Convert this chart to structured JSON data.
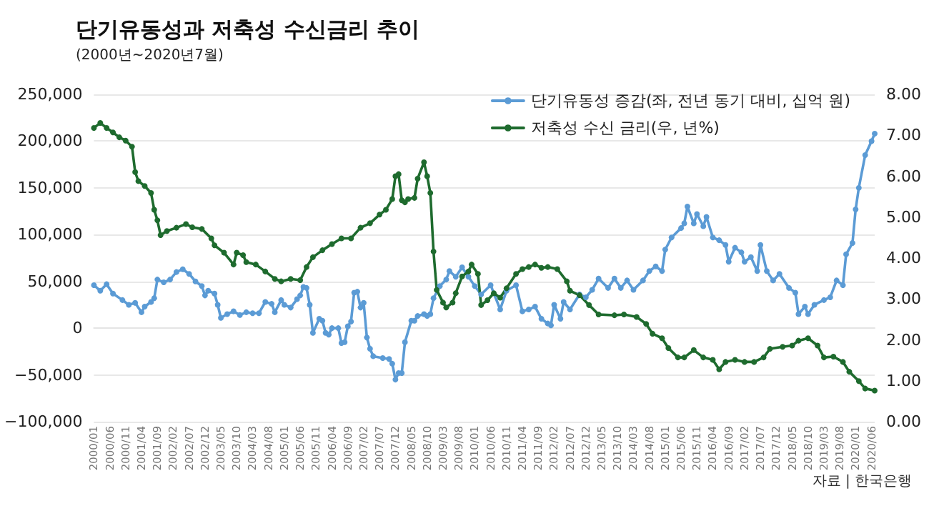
{
  "chart_data": {
    "type": "line",
    "title": "단기유동성과 저축성 수신금리 추이",
    "subtitle": "(2000년~2020년7월)",
    "annotations": [
      "자료 | 한국은행"
    ],
    "xlim": [
      "2000-01",
      "2020-07"
    ],
    "xticks": [
      {
        "value": "2000-01",
        "label": "2000/01"
      },
      {
        "value": "2000-06",
        "label": "2000/06"
      },
      {
        "value": "2000-11",
        "label": "2000/11"
      },
      {
        "value": "2001-04",
        "label": "2001/04"
      },
      {
        "value": "2001-09",
        "label": "2001/09"
      },
      {
        "value": "2002-02",
        "label": "2002/02"
      },
      {
        "value": "2002-07",
        "label": "2002/07"
      },
      {
        "value": "2002-12",
        "label": "2002/12"
      },
      {
        "value": "2003-05",
        "label": "2003/05"
      },
      {
        "value": "2003-10",
        "label": "2003/10"
      },
      {
        "value": "2004-03",
        "label": "2004/03"
      },
      {
        "value": "2004-08",
        "label": "2004/08"
      },
      {
        "value": "2005-01",
        "label": "2005/01"
      },
      {
        "value": "2005-06",
        "label": "2005/06"
      },
      {
        "value": "2005-11",
        "label": "2005/11"
      },
      {
        "value": "2006-04",
        "label": "2006/04"
      },
      {
        "value": "2006-09",
        "label": "2006/09"
      },
      {
        "value": "2007-02",
        "label": "2007/02"
      },
      {
        "value": "2007-07",
        "label": "2007/07"
      },
      {
        "value": "2007-12",
        "label": "2007/12"
      },
      {
        "value": "2008-05",
        "label": "2008/05"
      },
      {
        "value": "2008-10",
        "label": "2008/10"
      },
      {
        "value": "2009-03",
        "label": "2009/03"
      },
      {
        "value": "2009-08",
        "label": "2009/08"
      },
      {
        "value": "2010-01",
        "label": "2010/01"
      },
      {
        "value": "2010-06",
        "label": "2010/06"
      },
      {
        "value": "2010-11",
        "label": "2010/11"
      },
      {
        "value": "2011-04",
        "label": "2011/04"
      },
      {
        "value": "2011-09",
        "label": "2011/09"
      },
      {
        "value": "2012-02",
        "label": "2012/02"
      },
      {
        "value": "2012-07",
        "label": "2012/07"
      },
      {
        "value": "2012-12",
        "label": "2012/12"
      },
      {
        "value": "2013-05",
        "label": "2013/05"
      },
      {
        "value": "2013-10",
        "label": "2013/10"
      },
      {
        "value": "2014-03",
        "label": "2014/03"
      },
      {
        "value": "2014-08",
        "label": "2014/08"
      },
      {
        "value": "2015-01",
        "label": "2015/01"
      },
      {
        "value": "2015-06",
        "label": "2015/06"
      },
      {
        "value": "2015-11",
        "label": "2015/11"
      },
      {
        "value": "2016-04",
        "label": "2016/04"
      },
      {
        "value": "2016-09",
        "label": "2016/09"
      },
      {
        "value": "2017-02",
        "label": "2017/02"
      },
      {
        "value": "2017-07",
        "label": "2017/07"
      },
      {
        "value": "2017-12",
        "label": "2017/12"
      },
      {
        "value": "2018-05",
        "label": "2018/05"
      },
      {
        "value": "2018-10",
        "label": "2018/10"
      },
      {
        "value": "2019-03",
        "label": "2019/03"
      },
      {
        "value": "2019-08",
        "label": "2019/08"
      },
      {
        "value": "2020-01",
        "label": "2020/01"
      },
      {
        "value": "2020-06",
        "label": "2020/06"
      }
    ],
    "ylim": [
      -100000,
      250000
    ],
    "yticks": [
      {
        "value": -100000,
        "label": "−100,000"
      },
      {
        "value": -50000,
        "label": "−50,000"
      },
      0,
      {
        "value": 50000,
        "label": "50,000"
      },
      {
        "value": 100000,
        "label": "100,000"
      },
      {
        "value": 150000,
        "label": "150,000"
      },
      {
        "value": 200000,
        "label": "200,000"
      },
      {
        "value": 250000,
        "label": "250,000"
      }
    ],
    "y2lim": [
      0,
      8
    ],
    "y2ticks": [
      {
        "value": 0,
        "label": "0.00"
      },
      {
        "value": 1,
        "label": "1.00"
      },
      {
        "value": 2,
        "label": "2.00"
      },
      {
        "value": 3,
        "label": "3.00"
      },
      {
        "value": 4,
        "label": "4.00"
      },
      {
        "value": 5,
        "label": "5.00"
      },
      {
        "value": 6,
        "label": "6.00"
      },
      {
        "value": 7,
        "label": "7.00"
      },
      {
        "value": 8,
        "label": "8.00"
      }
    ],
    "grid": "y",
    "legend": "top right",
    "marker": "circle",
    "line_style": "solid",
    "series": [
      {
        "name": "단기유동성 증감(좌, 전년 동기 대비, 십억 원)",
        "color": "#5b9bd5",
        "x": [
          "2000-01",
          "2000-03",
          "2000-05",
          "2000-07",
          "2000-10",
          "2000-12",
          "2001-02",
          "2001-04",
          "2001-05",
          "2001-07",
          "2001-08",
          "2001-09",
          "2001-11",
          "2002-01",
          "2002-03",
          "2002-05",
          "2002-07",
          "2002-09",
          "2002-11",
          "2002-12",
          "2003-01",
          "2003-03",
          "2003-04",
          "2003-05",
          "2003-07",
          "2003-09",
          "2003-11",
          "2004-01",
          "2004-03",
          "2004-05",
          "2004-07",
          "2004-09",
          "2004-10",
          "2004-12",
          "2005-01",
          "2005-03",
          "2005-05",
          "2005-06",
          "2005-07",
          "2005-08",
          "2005-09",
          "2005-10",
          "2005-12",
          "2006-01",
          "2006-02",
          "2006-03",
          "2006-04",
          "2006-06",
          "2006-07",
          "2006-08",
          "2006-09",
          "2006-10",
          "2006-11",
          "2006-12",
          "2007-01",
          "2007-02",
          "2007-03",
          "2007-04",
          "2007-05",
          "2007-08",
          "2007-10",
          "2007-11",
          "2007-12",
          "2008-01",
          "2008-02",
          "2008-03",
          "2008-05",
          "2008-06",
          "2008-07",
          "2008-09",
          "2008-10",
          "2008-11",
          "2008-12",
          "2009-02",
          "2009-04",
          "2009-05",
          "2009-07",
          "2009-09",
          "2009-11",
          "2010-01",
          "2010-03",
          "2010-06",
          "2010-09",
          "2010-11",
          "2011-02",
          "2011-04",
          "2011-06",
          "2011-08",
          "2011-10",
          "2011-12",
          "2012-01",
          "2012-02",
          "2012-04",
          "2012-05",
          "2012-07",
          "2012-10",
          "2012-12",
          "2013-02",
          "2013-04",
          "2013-07",
          "2013-09",
          "2013-11",
          "2014-01",
          "2014-03",
          "2014-06",
          "2014-08",
          "2014-10",
          "2014-12",
          "2015-01",
          "2015-03",
          "2015-06",
          "2015-07",
          "2015-08",
          "2015-10",
          "2015-11",
          "2016-01",
          "2016-02",
          "2016-04",
          "2016-06",
          "2016-08",
          "2016-09",
          "2016-11",
          "2017-01",
          "2017-02",
          "2017-04",
          "2017-06",
          "2017-07",
          "2017-09",
          "2017-11",
          "2018-01",
          "2018-04",
          "2018-06",
          "2018-07",
          "2018-09",
          "2018-10",
          "2018-12",
          "2019-03",
          "2019-05",
          "2019-07",
          "2019-09",
          "2019-10",
          "2019-12",
          "2020-01",
          "2020-02",
          "2020-04",
          "2020-06",
          "2020-07"
        ],
        "values": [
          46000,
          40000,
          47000,
          37000,
          30000,
          25000,
          27000,
          17000,
          23000,
          28000,
          32000,
          52000,
          49000,
          52000,
          60000,
          63000,
          58000,
          50000,
          45000,
          35000,
          40000,
          37000,
          25000,
          11000,
          15000,
          18000,
          14000,
          17000,
          16000,
          16000,
          28000,
          26000,
          17000,
          30000,
          25000,
          22000,
          31000,
          35000,
          44000,
          43000,
          25000,
          -5000,
          10000,
          8000,
          -5000,
          -7000,
          0,
          0,
          -16000,
          -15000,
          2000,
          7000,
          38000,
          39000,
          22000,
          27000,
          -10000,
          -22000,
          -30000,
          -32000,
          -33000,
          -38000,
          -55000,
          -48000,
          -48000,
          -15000,
          8000,
          8000,
          13000,
          15000,
          13000,
          15000,
          32000,
          45000,
          52000,
          61000,
          55000,
          65000,
          55000,
          45000,
          36000,
          46000,
          20000,
          40000,
          46000,
          18000,
          20000,
          23000,
          10000,
          5000,
          3000,
          25000,
          10000,
          28000,
          20000,
          36000,
          33000,
          41000,
          53000,
          43000,
          53000,
          43000,
          51000,
          41000,
          51000,
          61000,
          66000,
          61000,
          84000,
          97000,
          107000,
          112000,
          130000,
          112000,
          122000,
          109000,
          119000,
          97000,
          94000,
          89000,
          71000,
          86000,
          81000,
          71000,
          76000,
          61000,
          89000,
          61000,
          51000,
          58000,
          43000,
          38000,
          15000,
          23000,
          15000,
          25000,
          30000,
          33000,
          51000,
          46000,
          79000,
          91000,
          127000,
          150000,
          185000,
          200000,
          208000
        ]
      },
      {
        "name": "저축성 수신 금리(우, 년%)",
        "color": "#1e6b2e",
        "axis": "y2",
        "x": [
          "2000-01",
          "2000-03",
          "2000-05",
          "2000-07",
          "2000-09",
          "2000-11",
          "2001-01",
          "2001-02",
          "2001-03",
          "2001-05",
          "2001-07",
          "2001-08",
          "2001-09",
          "2001-10",
          "2001-12",
          "2002-03",
          "2002-06",
          "2002-08",
          "2002-11",
          "2003-02",
          "2003-03",
          "2003-06",
          "2003-09",
          "2003-10",
          "2003-12",
          "2004-01",
          "2004-04",
          "2004-07",
          "2004-10",
          "2004-12",
          "2005-03",
          "2005-06",
          "2005-08",
          "2005-10",
          "2006-01",
          "2006-04",
          "2006-07",
          "2006-10",
          "2007-01",
          "2007-04",
          "2007-07",
          "2007-09",
          "2007-11",
          "2007-12",
          "2008-01",
          "2008-02",
          "2008-03",
          "2008-04",
          "2008-06",
          "2008-07",
          "2008-09",
          "2008-10",
          "2008-11",
          "2008-12",
          "2009-01",
          "2009-03",
          "2009-04",
          "2009-06",
          "2009-07",
          "2009-09",
          "2009-11",
          "2009-12",
          "2010-02",
          "2010-03",
          "2010-05",
          "2010-07",
          "2010-09",
          "2010-11",
          "2011-02",
          "2011-04",
          "2011-06",
          "2011-08",
          "2011-10",
          "2011-12",
          "2012-03",
          "2012-06",
          "2012-07",
          "2012-10",
          "2013-01",
          "2013-04",
          "2013-09",
          "2013-12",
          "2014-04",
          "2014-07",
          "2014-09",
          "2014-12",
          "2015-02",
          "2015-05",
          "2015-07",
          "2015-10",
          "2016-01",
          "2016-04",
          "2016-06",
          "2016-08",
          "2016-11",
          "2017-02",
          "2017-05",
          "2017-08",
          "2017-10",
          "2018-02",
          "2018-05",
          "2018-07",
          "2018-10",
          "2019-01",
          "2019-03",
          "2019-06",
          "2019-09",
          "2019-11",
          "2020-02",
          "2020-04",
          "2020-07"
        ],
        "values": [
          7.18,
          7.3,
          7.18,
          7.07,
          6.95,
          6.87,
          6.72,
          6.1,
          5.88,
          5.76,
          5.59,
          5.18,
          4.92,
          4.56,
          4.66,
          4.74,
          4.83,
          4.75,
          4.71,
          4.48,
          4.31,
          4.13,
          3.84,
          4.13,
          4.07,
          3.9,
          3.84,
          3.67,
          3.49,
          3.43,
          3.49,
          3.46,
          3.78,
          4.02,
          4.19,
          4.34,
          4.48,
          4.48,
          4.74,
          4.85,
          5.06,
          5.18,
          5.44,
          6.0,
          6.05,
          5.41,
          5.36,
          5.44,
          5.47,
          5.94,
          6.34,
          6.0,
          5.59,
          4.16,
          3.22,
          2.91,
          2.79,
          2.91,
          3.14,
          3.55,
          3.67,
          3.84,
          3.61,
          2.85,
          2.97,
          3.14,
          3.03,
          3.26,
          3.61,
          3.73,
          3.78,
          3.84,
          3.76,
          3.78,
          3.73,
          3.43,
          3.2,
          3.09,
          2.85,
          2.62,
          2.6,
          2.62,
          2.56,
          2.39,
          2.15,
          2.04,
          1.8,
          1.57,
          1.57,
          1.75,
          1.57,
          1.51,
          1.28,
          1.46,
          1.51,
          1.46,
          1.46,
          1.57,
          1.78,
          1.83,
          1.86,
          1.98,
          2.04,
          1.86,
          1.57,
          1.59,
          1.46,
          1.22,
          0.99,
          0.81,
          0.76
        ]
      }
    ]
  }
}
